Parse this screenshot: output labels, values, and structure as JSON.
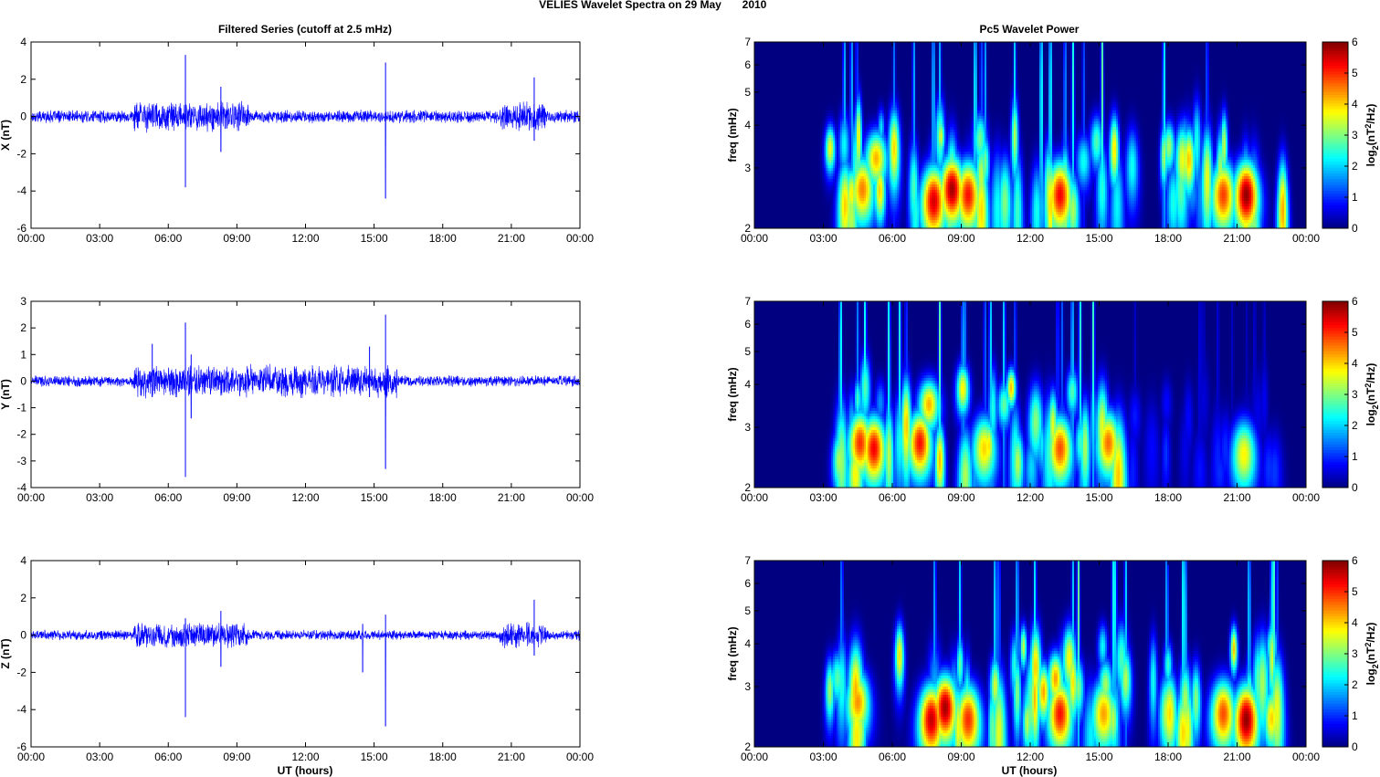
{
  "figure": {
    "title": "VELIES Wavelet Spectra on 29 May",
    "year": "2010",
    "left_title": "Filtered Series (cutoff at 2.5 mHz)",
    "right_title": "Pc5 Wavelet Power",
    "xlabel": "UT (hours)",
    "colors": {
      "trace": "#0000ff",
      "axis": "#000000",
      "grid_tick": "#000000"
    }
  },
  "chart_data": [
    {
      "type": "line",
      "panel": "X",
      "ylabel": "X (nT)",
      "xlim_hours": [
        0,
        24
      ],
      "x_ticks": [
        "00:00",
        "03:00",
        "06:00",
        "09:00",
        "12:00",
        "15:00",
        "18:00",
        "21:00",
        "00:00"
      ],
      "ylim": [
        -6,
        4
      ],
      "y_ticks": [
        "-6",
        "-4",
        "-2",
        "0",
        "2",
        "4"
      ],
      "baseline_amplitude": 0.25,
      "active_intervals": [
        [
          4.5,
          9.5,
          0.6
        ],
        [
          20.5,
          22.5,
          0.6
        ]
      ],
      "spikes": [
        {
          "t": 6.75,
          "max": 3.3,
          "min": -3.8
        },
        {
          "t": 8.3,
          "max": 1.6,
          "min": -1.9
        },
        {
          "t": 15.5,
          "max": 2.9,
          "min": -4.4
        },
        {
          "t": 22.0,
          "max": 2.1,
          "min": -1.3
        }
      ]
    },
    {
      "type": "line",
      "panel": "Y",
      "ylabel": "Y (nT)",
      "xlim_hours": [
        0,
        24
      ],
      "x_ticks": [
        "00:00",
        "03:00",
        "06:00",
        "09:00",
        "12:00",
        "15:00",
        "18:00",
        "21:00",
        "00:00"
      ],
      "ylim": [
        -4,
        3
      ],
      "y_ticks": [
        "-4",
        "-3",
        "-2",
        "-1",
        "0",
        "1",
        "2",
        "3"
      ],
      "baseline_amplitude": 0.15,
      "active_intervals": [
        [
          4.5,
          16.0,
          0.45
        ]
      ],
      "spikes": [
        {
          "t": 5.3,
          "max": 1.4,
          "min": -0.6
        },
        {
          "t": 6.75,
          "max": 2.2,
          "min": -3.6
        },
        {
          "t": 7.0,
          "max": 1.0,
          "min": -1.4
        },
        {
          "t": 14.8,
          "max": 1.3,
          "min": -0.6
        },
        {
          "t": 15.5,
          "max": 2.5,
          "min": -3.3
        }
      ]
    },
    {
      "type": "line",
      "panel": "Z",
      "ylabel": "Z (nT)",
      "xlim_hours": [
        0,
        24
      ],
      "x_ticks": [
        "00:00",
        "03:00",
        "06:00",
        "09:00",
        "12:00",
        "15:00",
        "18:00",
        "21:00",
        "00:00"
      ],
      "ylim": [
        -6,
        4
      ],
      "y_ticks": [
        "-6",
        "-4",
        "-2",
        "0",
        "2",
        "4"
      ],
      "baseline_amplitude": 0.2,
      "active_intervals": [
        [
          4.5,
          9.5,
          0.5
        ],
        [
          20.5,
          22.5,
          0.5
        ]
      ],
      "spikes": [
        {
          "t": 6.75,
          "max": 0.9,
          "min": -4.4
        },
        {
          "t": 8.3,
          "max": 1.3,
          "min": -1.7
        },
        {
          "t": 14.5,
          "max": 0.6,
          "min": -2.0
        },
        {
          "t": 15.5,
          "max": 1.1,
          "min": -4.9
        },
        {
          "t": 22.0,
          "max": 1.9,
          "min": -1.1
        }
      ]
    },
    {
      "type": "heatmap",
      "panel": "X",
      "ylabel": "freq (mHz)",
      "yscale": "log",
      "ylim": [
        2,
        7
      ],
      "y_ticks": [
        "2",
        "3",
        "4",
        "5",
        "6",
        "7"
      ],
      "xlim_hours": [
        0,
        24
      ],
      "x_ticks": [
        "00:00",
        "03:00",
        "06:00",
        "09:00",
        "12:00",
        "15:00",
        "18:00",
        "21:00",
        "00:00"
      ],
      "colorbar_label": "log2(nT^2/Hz)",
      "colorbar_ticks": [
        "0",
        "1",
        "2",
        "3",
        "4",
        "5",
        "6"
      ],
      "clim": [
        0,
        6
      ],
      "colormap": "jet",
      "active_intervals": [
        [
          3.2,
          16.5,
          1.0
        ],
        [
          17.3,
          23.0,
          1.0
        ]
      ],
      "peaks": [
        [
          7.8,
          2.4,
          5.5
        ],
        [
          8.6,
          2.6,
          5.8
        ],
        [
          9.3,
          2.5,
          5.2
        ],
        [
          13.3,
          2.5,
          5.3
        ],
        [
          21.4,
          2.5,
          5.9
        ],
        [
          20.4,
          2.5,
          4.9
        ],
        [
          4.7,
          2.6,
          4.5
        ],
        [
          5.3,
          3.2,
          4.2
        ]
      ]
    },
    {
      "type": "heatmap",
      "panel": "Y",
      "ylabel": "freq (mHz)",
      "yscale": "log",
      "ylim": [
        2,
        7
      ],
      "y_ticks": [
        "2",
        "3",
        "4",
        "5",
        "6",
        "7"
      ],
      "xlim_hours": [
        0,
        24
      ],
      "x_ticks": [
        "00:00",
        "03:00",
        "06:00",
        "09:00",
        "12:00",
        "15:00",
        "18:00",
        "21:00",
        "00:00"
      ],
      "colorbar_label": "log2(nT^2/Hz)",
      "colorbar_ticks": [
        "0",
        "1",
        "2",
        "3",
        "4",
        "5",
        "6"
      ],
      "clim": [
        0,
        6
      ],
      "colormap": "jet",
      "active_intervals": [
        [
          3.0,
          16.0,
          0.95
        ],
        [
          16.0,
          23.0,
          0.25
        ]
      ],
      "peaks": [
        [
          4.6,
          2.7,
          5.0
        ],
        [
          5.2,
          2.6,
          5.3
        ],
        [
          7.2,
          2.7,
          5.2
        ],
        [
          7.6,
          3.5,
          4.2
        ],
        [
          10.0,
          2.6,
          4.0
        ],
        [
          13.3,
          2.6,
          4.8
        ],
        [
          15.4,
          2.7,
          4.6
        ],
        [
          21.3,
          2.5,
          3.8
        ]
      ]
    },
    {
      "type": "heatmap",
      "panel": "Z",
      "ylabel": "freq (mHz)",
      "yscale": "log",
      "ylim": [
        2,
        7
      ],
      "y_ticks": [
        "2",
        "3",
        "4",
        "5",
        "6",
        "7"
      ],
      "xlim_hours": [
        0,
        24
      ],
      "x_ticks": [
        "00:00",
        "03:00",
        "06:00",
        "09:00",
        "12:00",
        "15:00",
        "18:00",
        "21:00",
        "00:00"
      ],
      "colorbar_label": "log2(nT^2/Hz)",
      "colorbar_ticks": [
        "0",
        "1",
        "2",
        "3",
        "4",
        "5",
        "6"
      ],
      "clim": [
        0,
        6
      ],
      "colormap": "jet",
      "active_intervals": [
        [
          3.2,
          16.5,
          1.0
        ],
        [
          17.3,
          23.0,
          1.0
        ]
      ],
      "peaks": [
        [
          7.7,
          2.4,
          5.6
        ],
        [
          8.3,
          2.6,
          5.8
        ],
        [
          9.3,
          2.4,
          5.0
        ],
        [
          13.3,
          2.5,
          5.2
        ],
        [
          21.4,
          2.4,
          5.9
        ],
        [
          20.4,
          2.5,
          4.8
        ],
        [
          4.5,
          2.7,
          4.4
        ],
        [
          15.2,
          2.5,
          4.3
        ]
      ]
    }
  ]
}
